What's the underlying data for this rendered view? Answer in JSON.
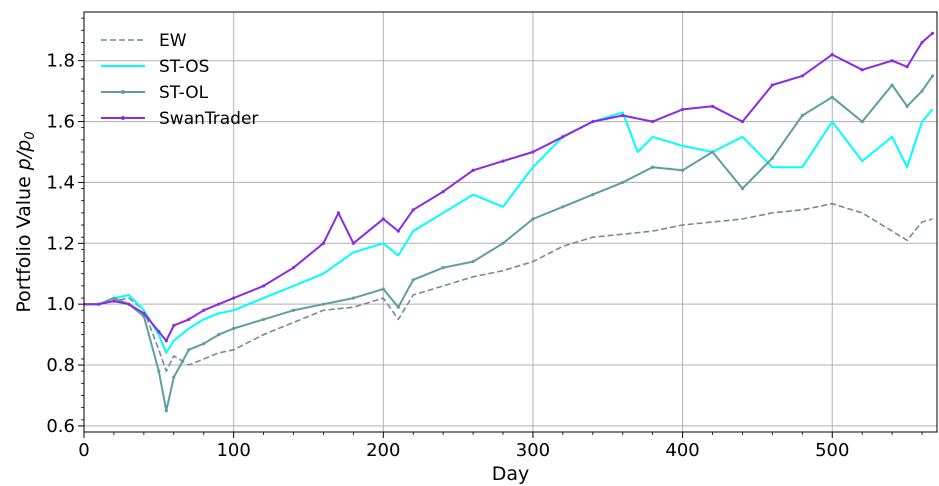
{
  "chart_data": {
    "type": "line",
    "xlabel": "Day",
    "ylabel_main": "Portfolio Value ",
    "ylabel_math": "p/p",
    "ylabel_sub": "0",
    "xlim": [
      0,
      570
    ],
    "ylim": [
      0.58,
      1.96
    ],
    "xticks": [
      0,
      100,
      200,
      300,
      400,
      500
    ],
    "yticks": [
      0.6,
      0.8,
      1.0,
      1.2,
      1.4,
      1.6,
      1.8
    ],
    "xtick_labels": [
      "0",
      "100",
      "200",
      "300",
      "400",
      "500"
    ],
    "ytick_labels": [
      "0.6",
      "0.8",
      "1.0",
      "1.2",
      "1.4",
      "1.6",
      "1.8"
    ],
    "grid": true,
    "legend_position": "top-left",
    "series": [
      {
        "name": "EW",
        "color": "#778899",
        "style": "dashed",
        "x": [
          0,
          10,
          20,
          30,
          40,
          50,
          55,
          60,
          70,
          80,
          90,
          100,
          120,
          140,
          160,
          180,
          200,
          210,
          220,
          240,
          260,
          280,
          300,
          320,
          340,
          360,
          380,
          400,
          420,
          440,
          460,
          480,
          500,
          520,
          540,
          550,
          560,
          567
        ],
        "values": [
          1.0,
          1.0,
          1.01,
          1.02,
          0.98,
          0.85,
          0.78,
          0.83,
          0.8,
          0.82,
          0.84,
          0.85,
          0.9,
          0.94,
          0.98,
          0.99,
          1.02,
          0.95,
          1.03,
          1.06,
          1.09,
          1.11,
          1.14,
          1.19,
          1.22,
          1.23,
          1.24,
          1.26,
          1.27,
          1.28,
          1.3,
          1.31,
          1.33,
          1.3,
          1.24,
          1.21,
          1.27,
          1.28
        ]
      },
      {
        "name": "ST-OS",
        "color": "#00FFFF",
        "style": "solid",
        "x": [
          0,
          10,
          20,
          30,
          40,
          50,
          55,
          60,
          70,
          80,
          90,
          100,
          120,
          140,
          160,
          180,
          200,
          210,
          220,
          240,
          260,
          280,
          300,
          320,
          340,
          360,
          370,
          380,
          400,
          420,
          440,
          460,
          480,
          500,
          520,
          540,
          550,
          560,
          567
        ],
        "values": [
          1.0,
          1.0,
          1.02,
          1.03,
          0.98,
          0.9,
          0.84,
          0.88,
          0.92,
          0.95,
          0.97,
          0.98,
          1.02,
          1.06,
          1.1,
          1.17,
          1.2,
          1.16,
          1.24,
          1.3,
          1.36,
          1.32,
          1.45,
          1.55,
          1.6,
          1.63,
          1.5,
          1.55,
          1.52,
          1.5,
          1.55,
          1.45,
          1.45,
          1.6,
          1.47,
          1.55,
          1.45,
          1.6,
          1.64
        ]
      },
      {
        "name": "ST-OL",
        "color": "#5F9EA0",
        "style": "solid-markers",
        "x": [
          0,
          10,
          20,
          30,
          40,
          50,
          55,
          60,
          70,
          80,
          90,
          100,
          120,
          140,
          160,
          180,
          200,
          210,
          220,
          240,
          260,
          280,
          300,
          320,
          340,
          360,
          380,
          400,
          420,
          440,
          460,
          480,
          500,
          520,
          540,
          550,
          560,
          567
        ],
        "values": [
          1.0,
          1.0,
          1.02,
          1.0,
          0.96,
          0.78,
          0.65,
          0.76,
          0.85,
          0.87,
          0.9,
          0.92,
          0.95,
          0.98,
          1.0,
          1.02,
          1.05,
          0.99,
          1.08,
          1.12,
          1.14,
          1.2,
          1.28,
          1.32,
          1.36,
          1.4,
          1.45,
          1.44,
          1.5,
          1.38,
          1.48,
          1.62,
          1.68,
          1.6,
          1.72,
          1.65,
          1.7,
          1.75
        ]
      },
      {
        "name": "SwanTrader",
        "color": "#8A2BE2",
        "style": "solid-markers",
        "x": [
          0,
          10,
          20,
          30,
          40,
          50,
          55,
          60,
          70,
          80,
          90,
          100,
          120,
          140,
          160,
          170,
          180,
          200,
          210,
          220,
          240,
          260,
          280,
          300,
          320,
          340,
          360,
          380,
          400,
          420,
          440,
          460,
          480,
          500,
          520,
          540,
          550,
          560,
          567
        ],
        "values": [
          1.0,
          1.0,
          1.01,
          1.0,
          0.97,
          0.91,
          0.88,
          0.93,
          0.95,
          0.98,
          1.0,
          1.02,
          1.06,
          1.12,
          1.2,
          1.3,
          1.2,
          1.28,
          1.24,
          1.31,
          1.37,
          1.44,
          1.47,
          1.5,
          1.55,
          1.6,
          1.62,
          1.6,
          1.64,
          1.65,
          1.6,
          1.72,
          1.75,
          1.82,
          1.77,
          1.8,
          1.78,
          1.86,
          1.89
        ]
      }
    ]
  }
}
